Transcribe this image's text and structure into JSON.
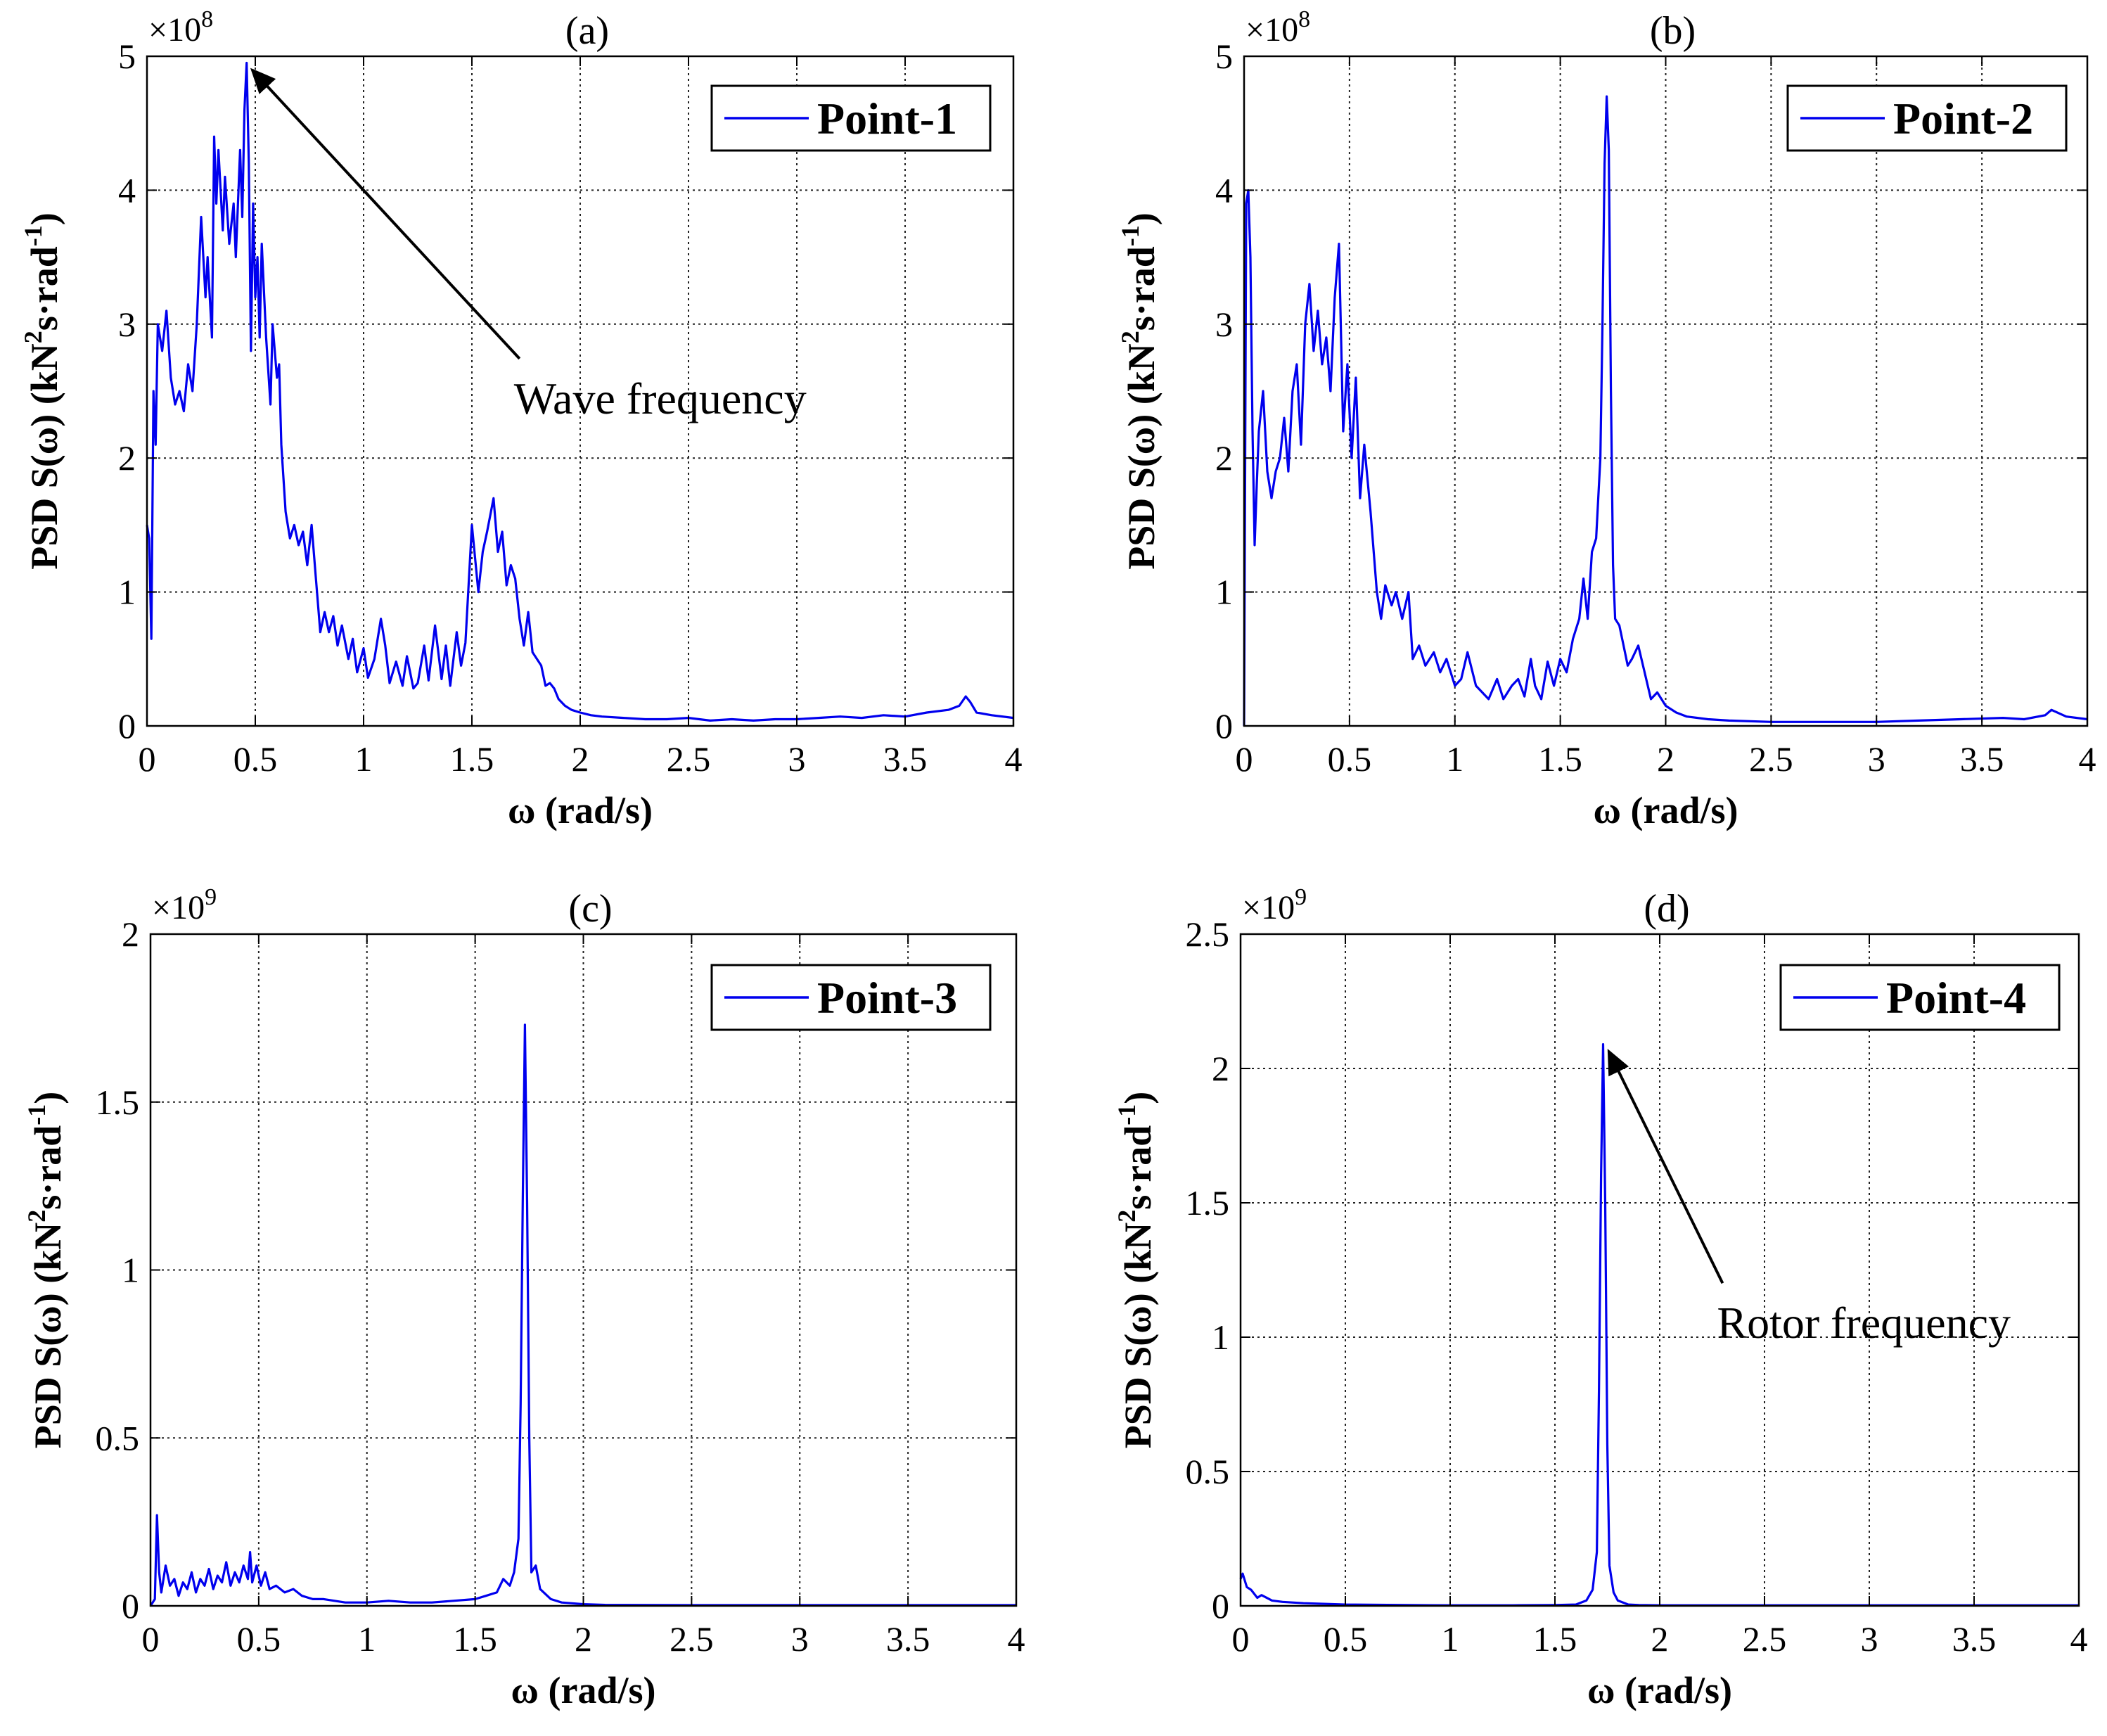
{
  "figure": {
    "background": "#ffffff",
    "line_color": "#0000ee",
    "axis_color": "#000000"
  },
  "chart_data": [
    {
      "type": "line",
      "title": "(a)",
      "xlabel": "ω (rad/s)",
      "ylabel_main": "PSD S(ω) (kN",
      "ylabel_sup1": "2",
      "ylabel_mid": "s·rad",
      "ylabel_sup2": "-1",
      "ylabel_end": ")",
      "exponent_base": "×10",
      "exponent_power": "8",
      "xlim": [
        0,
        4
      ],
      "ylim": [
        0,
        5
      ],
      "xticks": [
        0,
        0.5,
        1,
        1.5,
        2,
        2.5,
        3,
        3.5,
        4
      ],
      "xtick_labels": [
        "0",
        "0.5",
        "1",
        "1.5",
        "2",
        "2.5",
        "3",
        "3.5",
        "4"
      ],
      "yticks": [
        0,
        1,
        2,
        3,
        4,
        5
      ],
      "ytick_labels": [
        "0",
        "1",
        "2",
        "3",
        "4",
        "5"
      ],
      "grid": true,
      "legend": {
        "label": "Point-1",
        "placement": "top-right"
      },
      "annotation": {
        "text": "Wave frequency",
        "arrow_to": [
          0.46,
          4.95
        ],
        "text_at": [
          1.72,
          2.7
        ]
      },
      "series": [
        {
          "name": "Point-1",
          "x": [
            0,
            0.01,
            0.02,
            0.03,
            0.04,
            0.05,
            0.07,
            0.09,
            0.11,
            0.13,
            0.15,
            0.17,
            0.19,
            0.21,
            0.23,
            0.25,
            0.27,
            0.28,
            0.3,
            0.31,
            0.32,
            0.33,
            0.35,
            0.36,
            0.38,
            0.4,
            0.41,
            0.43,
            0.44,
            0.45,
            0.46,
            0.47,
            0.48,
            0.49,
            0.5,
            0.51,
            0.52,
            0.53,
            0.55,
            0.57,
            0.58,
            0.6,
            0.61,
            0.62,
            0.64,
            0.66,
            0.68,
            0.7,
            0.72,
            0.74,
            0.76,
            0.78,
            0.8,
            0.82,
            0.84,
            0.86,
            0.88,
            0.9,
            0.93,
            0.95,
            0.97,
            1.0,
            1.02,
            1.05,
            1.08,
            1.1,
            1.12,
            1.15,
            1.18,
            1.2,
            1.23,
            1.25,
            1.28,
            1.3,
            1.33,
            1.36,
            1.38,
            1.4,
            1.43,
            1.45,
            1.47,
            1.5,
            1.53,
            1.55,
            1.57,
            1.6,
            1.62,
            1.64,
            1.66,
            1.68,
            1.7,
            1.72,
            1.74,
            1.76,
            1.78,
            1.8,
            1.82,
            1.84,
            1.86,
            1.88,
            1.9,
            1.93,
            1.96,
            2.0,
            2.05,
            2.1,
            2.2,
            2.3,
            2.4,
            2.5,
            2.6,
            2.7,
            2.8,
            2.9,
            3.0,
            3.1,
            3.2,
            3.3,
            3.4,
            3.5,
            3.6,
            3.7,
            3.75,
            3.78,
            3.8,
            3.83,
            3.9,
            4.0
          ],
          "y": [
            1.5,
            1.4,
            0.65,
            2.5,
            2.1,
            3.0,
            2.8,
            3.1,
            2.6,
            2.4,
            2.5,
            2.35,
            2.7,
            2.5,
            3.0,
            3.8,
            3.2,
            3.5,
            2.9,
            4.4,
            3.9,
            4.3,
            3.7,
            4.1,
            3.6,
            3.9,
            3.5,
            4.3,
            3.8,
            4.6,
            4.95,
            4.2,
            2.8,
            3.9,
            3.2,
            3.5,
            2.9,
            3.6,
            2.9,
            2.4,
            3.0,
            2.6,
            2.7,
            2.1,
            1.6,
            1.4,
            1.5,
            1.35,
            1.45,
            1.2,
            1.5,
            1.1,
            0.7,
            0.85,
            0.7,
            0.82,
            0.6,
            0.75,
            0.5,
            0.65,
            0.4,
            0.58,
            0.36,
            0.5,
            0.8,
            0.6,
            0.32,
            0.48,
            0.3,
            0.52,
            0.28,
            0.32,
            0.6,
            0.34,
            0.75,
            0.35,
            0.6,
            0.3,
            0.7,
            0.45,
            0.62,
            1.5,
            1.0,
            1.3,
            1.45,
            1.7,
            1.3,
            1.45,
            1.05,
            1.2,
            1.1,
            0.8,
            0.6,
            0.85,
            0.55,
            0.5,
            0.45,
            0.3,
            0.32,
            0.28,
            0.2,
            0.15,
            0.12,
            0.1,
            0.08,
            0.07,
            0.06,
            0.05,
            0.05,
            0.06,
            0.04,
            0.05,
            0.04,
            0.05,
            0.05,
            0.06,
            0.07,
            0.06,
            0.08,
            0.07,
            0.1,
            0.12,
            0.15,
            0.22,
            0.18,
            0.1,
            0.08,
            0.06
          ]
        }
      ]
    },
    {
      "type": "line",
      "title": "(b)",
      "xlabel": "ω (rad/s)",
      "ylabel_main": "PSD S(ω) (kN",
      "ylabel_sup1": "2",
      "ylabel_mid": "s·rad",
      "ylabel_sup2": "-1",
      "ylabel_end": ")",
      "exponent_base": "×10",
      "exponent_power": "8",
      "xlim": [
        0,
        4
      ],
      "ylim": [
        0,
        5
      ],
      "xticks": [
        0,
        0.5,
        1,
        1.5,
        2,
        2.5,
        3,
        3.5,
        4
      ],
      "xtick_labels": [
        "0",
        "0.5",
        "1",
        "1.5",
        "2",
        "2.5",
        "3",
        "3.5",
        "4"
      ],
      "yticks": [
        0,
        1,
        2,
        3,
        4,
        5
      ],
      "ytick_labels": [
        "0",
        "1",
        "2",
        "3",
        "4",
        "5"
      ],
      "grid": true,
      "legend": {
        "label": "Point-2",
        "placement": "top-right"
      },
      "series": [
        {
          "name": "Point-2",
          "x": [
            0,
            0.01,
            0.02,
            0.03,
            0.04,
            0.05,
            0.06,
            0.07,
            0.09,
            0.11,
            0.13,
            0.15,
            0.17,
            0.19,
            0.21,
            0.23,
            0.25,
            0.27,
            0.29,
            0.31,
            0.33,
            0.35,
            0.37,
            0.39,
            0.41,
            0.43,
            0.45,
            0.46,
            0.47,
            0.49,
            0.51,
            0.53,
            0.55,
            0.57,
            0.6,
            0.63,
            0.65,
            0.67,
            0.7,
            0.72,
            0.75,
            0.78,
            0.8,
            0.83,
            0.86,
            0.9,
            0.93,
            0.96,
            1.0,
            1.03,
            1.06,
            1.1,
            1.13,
            1.16,
            1.2,
            1.23,
            1.27,
            1.3,
            1.33,
            1.36,
            1.38,
            1.41,
            1.44,
            1.47,
            1.5,
            1.53,
            1.56,
            1.59,
            1.61,
            1.63,
            1.65,
            1.67,
            1.69,
            1.7,
            1.71,
            1.72,
            1.73,
            1.74,
            1.75,
            1.76,
            1.78,
            1.8,
            1.82,
            1.84,
            1.87,
            1.9,
            1.93,
            1.96,
            2.0,
            2.05,
            2.1,
            2.2,
            2.3,
            2.5,
            2.7,
            2.9,
            3.0,
            3.2,
            3.4,
            3.6,
            3.7,
            3.8,
            3.83,
            3.9,
            4.0
          ],
          "y": [
            0.0,
            3.9,
            4.0,
            3.5,
            2.2,
            1.35,
            1.8,
            2.2,
            2.5,
            1.9,
            1.7,
            1.9,
            2.0,
            2.3,
            1.9,
            2.5,
            2.7,
            2.1,
            3.0,
            3.3,
            2.8,
            3.1,
            2.7,
            2.9,
            2.5,
            3.2,
            3.6,
            2.9,
            2.2,
            2.7,
            2.0,
            2.6,
            1.7,
            2.1,
            1.6,
            1.0,
            0.8,
            1.05,
            0.9,
            1.0,
            0.8,
            1.0,
            0.5,
            0.6,
            0.45,
            0.55,
            0.4,
            0.5,
            0.3,
            0.35,
            0.55,
            0.3,
            0.25,
            0.2,
            0.35,
            0.2,
            0.3,
            0.35,
            0.22,
            0.5,
            0.3,
            0.2,
            0.48,
            0.3,
            0.5,
            0.4,
            0.65,
            0.8,
            1.1,
            0.8,
            1.3,
            1.4,
            2.0,
            3.0,
            4.2,
            4.7,
            4.3,
            2.5,
            1.2,
            0.8,
            0.75,
            0.6,
            0.45,
            0.5,
            0.6,
            0.4,
            0.2,
            0.25,
            0.15,
            0.1,
            0.07,
            0.05,
            0.04,
            0.03,
            0.03,
            0.03,
            0.03,
            0.04,
            0.05,
            0.06,
            0.05,
            0.08,
            0.12,
            0.07,
            0.05
          ]
        }
      ]
    },
    {
      "type": "line",
      "title": "(c)",
      "xlabel": "ω (rad/s)",
      "ylabel_main": "PSD S(ω) (kN",
      "ylabel_sup1": "2",
      "ylabel_mid": "s·rad",
      "ylabel_sup2": "-1",
      "ylabel_end": ")",
      "exponent_base": "×10",
      "exponent_power": "9",
      "xlim": [
        0,
        4
      ],
      "ylim": [
        0,
        2
      ],
      "xticks": [
        0,
        0.5,
        1,
        1.5,
        2,
        2.5,
        3,
        3.5,
        4
      ],
      "xtick_labels": [
        "0",
        "0.5",
        "1",
        "1.5",
        "2",
        "2.5",
        "3",
        "3.5",
        "4"
      ],
      "yticks": [
        0,
        0.5,
        1,
        1.5,
        2
      ],
      "ytick_labels": [
        "0",
        "0.5",
        "1",
        "1.5",
        "2"
      ],
      "grid": true,
      "legend": {
        "label": "Point-3",
        "placement": "top-right"
      },
      "series": [
        {
          "name": "Point-3",
          "x": [
            0,
            0.02,
            0.03,
            0.04,
            0.05,
            0.07,
            0.09,
            0.11,
            0.13,
            0.15,
            0.17,
            0.19,
            0.21,
            0.23,
            0.25,
            0.27,
            0.29,
            0.31,
            0.33,
            0.35,
            0.37,
            0.39,
            0.41,
            0.43,
            0.45,
            0.46,
            0.47,
            0.49,
            0.51,
            0.53,
            0.55,
            0.58,
            0.62,
            0.66,
            0.7,
            0.75,
            0.8,
            0.9,
            1.0,
            1.1,
            1.2,
            1.3,
            1.4,
            1.5,
            1.55,
            1.6,
            1.63,
            1.66,
            1.68,
            1.7,
            1.71,
            1.72,
            1.73,
            1.74,
            1.75,
            1.76,
            1.78,
            1.8,
            1.85,
            1.9,
            2.0,
            2.1,
            2.5,
            3.0,
            3.5,
            4.0
          ],
          "y": [
            0.0,
            0.02,
            0.27,
            0.1,
            0.04,
            0.12,
            0.06,
            0.08,
            0.03,
            0.07,
            0.05,
            0.1,
            0.04,
            0.08,
            0.06,
            0.11,
            0.05,
            0.09,
            0.07,
            0.13,
            0.06,
            0.1,
            0.07,
            0.12,
            0.08,
            0.16,
            0.07,
            0.12,
            0.06,
            0.1,
            0.05,
            0.06,
            0.04,
            0.05,
            0.03,
            0.02,
            0.02,
            0.01,
            0.01,
            0.015,
            0.01,
            0.01,
            0.015,
            0.02,
            0.03,
            0.04,
            0.08,
            0.06,
            0.1,
            0.2,
            0.6,
            1.2,
            1.73,
            1.2,
            0.5,
            0.1,
            0.12,
            0.05,
            0.02,
            0.01,
            0.005,
            0.003,
            0.002,
            0.002,
            0.002,
            0.002
          ]
        }
      ]
    },
    {
      "type": "line",
      "title": "(d)",
      "xlabel": "ω (rad/s)",
      "ylabel_main": "PSD S(ω) (kN",
      "ylabel_sup1": "2",
      "ylabel_mid": "s·rad",
      "ylabel_sup2": "-1",
      "ylabel_end": ")",
      "exponent_base": "×10",
      "exponent_power": "9",
      "xlim": [
        0,
        4
      ],
      "ylim": [
        0,
        2.5
      ],
      "xticks": [
        0,
        0.5,
        1,
        1.5,
        2,
        2.5,
        3,
        3.5,
        4
      ],
      "xtick_labels": [
        "0",
        "0.5",
        "1",
        "1.5",
        "2",
        "2.5",
        "3",
        "3.5",
        "4"
      ],
      "yticks": [
        0,
        0.5,
        1,
        1.5,
        2,
        2.5
      ],
      "ytick_labels": [
        "0",
        "0.5",
        "1",
        "1.5",
        "2",
        "2.5"
      ],
      "grid": true,
      "legend": {
        "label": "Point-4",
        "placement": "top-right"
      },
      "annotation": {
        "text": "Rotor frequency",
        "arrow_to": [
          1.73,
          2.09
        ],
        "text_at": [
          2.3,
          1.18
        ]
      },
      "series": [
        {
          "name": "Point-4",
          "x": [
            0,
            0.01,
            0.03,
            0.05,
            0.08,
            0.1,
            0.15,
            0.2,
            0.3,
            0.5,
            0.8,
            1.0,
            1.3,
            1.5,
            1.6,
            1.65,
            1.68,
            1.7,
            1.71,
            1.72,
            1.73,
            1.74,
            1.75,
            1.76,
            1.78,
            1.8,
            1.85,
            1.9,
            2.0,
            2.5,
            3.0,
            3.5,
            4.0
          ],
          "y": [
            0.1,
            0.12,
            0.07,
            0.06,
            0.03,
            0.04,
            0.02,
            0.015,
            0.01,
            0.005,
            0.003,
            0.002,
            0.002,
            0.003,
            0.005,
            0.02,
            0.06,
            0.2,
            0.8,
            1.6,
            2.09,
            1.5,
            0.6,
            0.15,
            0.05,
            0.02,
            0.005,
            0.003,
            0.002,
            0.002,
            0.002,
            0.002,
            0.002
          ]
        }
      ]
    }
  ]
}
